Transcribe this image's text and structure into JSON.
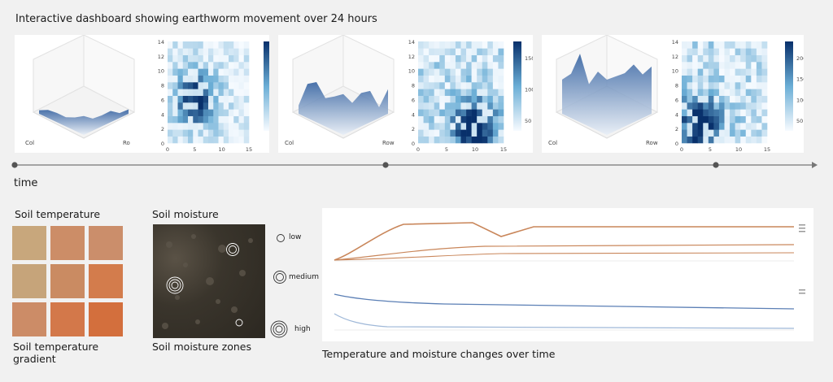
{
  "header": {
    "title": "Interactive dashboard showing earthworm movement over 24 hours"
  },
  "timeline": {
    "label": "time",
    "markers": 3
  },
  "panels": [
    {
      "surface_axis": {
        "col_label": "Col",
        "row_label": "Ro"
      },
      "heatmap": {
        "y_ticks": [
          "14",
          "12",
          "10",
          "8",
          "6",
          "4",
          "2",
          "0"
        ],
        "x_ticks": [
          "0",
          "5",
          "10",
          "15"
        ],
        "colorbar_ticks": [
          "12",
          "10",
          "8",
          "6",
          "4",
          "2",
          "0"
        ],
        "intensity": [
          [
            0,
            0,
            0,
            0,
            0,
            0,
            0,
            0,
            0,
            0,
            0,
            0,
            0,
            0,
            0,
            0
          ],
          [
            0,
            0,
            0,
            0,
            0,
            0,
            0,
            0,
            0,
            0,
            0,
            0,
            0,
            0,
            0,
            0
          ],
          [
            0,
            0,
            0,
            0,
            0,
            0,
            0,
            0,
            0,
            0,
            0,
            0,
            0,
            0,
            0,
            0
          ],
          [
            0,
            0,
            0,
            0,
            0,
            0,
            0,
            0,
            0,
            0,
            0,
            0,
            0,
            0,
            0,
            0
          ],
          [
            0,
            0,
            0,
            0,
            0,
            0,
            0,
            0,
            0,
            0,
            0,
            0,
            0,
            0,
            0,
            0
          ],
          [
            0,
            0,
            0,
            0,
            0,
            0,
            0,
            0,
            0,
            0,
            0,
            0,
            0,
            0,
            0,
            0
          ],
          [
            0,
            0,
            0,
            0,
            0,
            0,
            0,
            0,
            0,
            0,
            0,
            0,
            0,
            0,
            0,
            0
          ],
          [
            0,
            0,
            0,
            0,
            0,
            0,
            0,
            0,
            0,
            0,
            0,
            0,
            0,
            0,
            0,
            0
          ],
          [
            0,
            0,
            0,
            0,
            0,
            0,
            0,
            0,
            0,
            0,
            0,
            0,
            0,
            0,
            0,
            0
          ],
          [
            0,
            0,
            0,
            0,
            0,
            0,
            0,
            0,
            0,
            0,
            0,
            0,
            0,
            0,
            0,
            0
          ],
          [
            0,
            0,
            0,
            0,
            0,
            0,
            0,
            0,
            0,
            0,
            0,
            0,
            0,
            0,
            0,
            0
          ],
          [
            0,
            0,
            0,
            0,
            0,
            0,
            0,
            0,
            0,
            0,
            0,
            0,
            0,
            0,
            0,
            0
          ],
          [
            0,
            0,
            0,
            0,
            0,
            0,
            0,
            0,
            0,
            0,
            0,
            0,
            0,
            0,
            0,
            0
          ],
          [
            0,
            0,
            0,
            0,
            0,
            0,
            0,
            0,
            0,
            0,
            0,
            0,
            0,
            0,
            0,
            0
          ],
          [
            0,
            0,
            0,
            0,
            0,
            0,
            0,
            0,
            0,
            0,
            0,
            0,
            0,
            0,
            0,
            0
          ]
        ]
      }
    },
    {
      "surface_axis": {
        "col_label": "Col",
        "row_label": "Row"
      },
      "heatmap": {
        "y_ticks": [
          "14",
          "12",
          "10",
          "8",
          "6",
          "4",
          "2",
          "0"
        ],
        "x_ticks": [
          "0",
          "5",
          "10",
          "15"
        ],
        "colorbar_ticks": [
          "150",
          "100",
          "50"
        ],
        "intensity": []
      }
    },
    {
      "surface_axis": {
        "col_label": "Col",
        "row_label": "Row"
      },
      "heatmap": {
        "y_ticks": [
          "14",
          "12",
          "10",
          "8",
          "6",
          "4",
          "2",
          "0"
        ],
        "x_ticks": [
          "0",
          "5",
          "10",
          "15"
        ],
        "colorbar_ticks": [
          "200",
          "150",
          "100",
          "50"
        ],
        "intensity": []
      }
    }
  ],
  "soil_temperature": {
    "title": "Soil temperature",
    "caption": "Soil temperature gradient",
    "swatches": [
      "#c8a77c",
      "#cc8d67",
      "#cb8e6b",
      "#c6a47a",
      "#ca8b62",
      "#d37c4c",
      "#cc8c67",
      "#d3784a",
      "#d36f3d"
    ]
  },
  "soil_moisture": {
    "title": "Soil moisture",
    "caption": "Soil moisture zones",
    "legend": [
      {
        "label": "low",
        "rings": 1
      },
      {
        "label": "medium",
        "rings": 2
      },
      {
        "label": "high",
        "rings": 3
      }
    ]
  },
  "linechart": {
    "caption": "Temperature and moisture changes over time",
    "colors": {
      "temp": "#c9865a",
      "moisture_dark": "#5b7fb5",
      "moisture_light": "#9fb8d8"
    }
  }
}
